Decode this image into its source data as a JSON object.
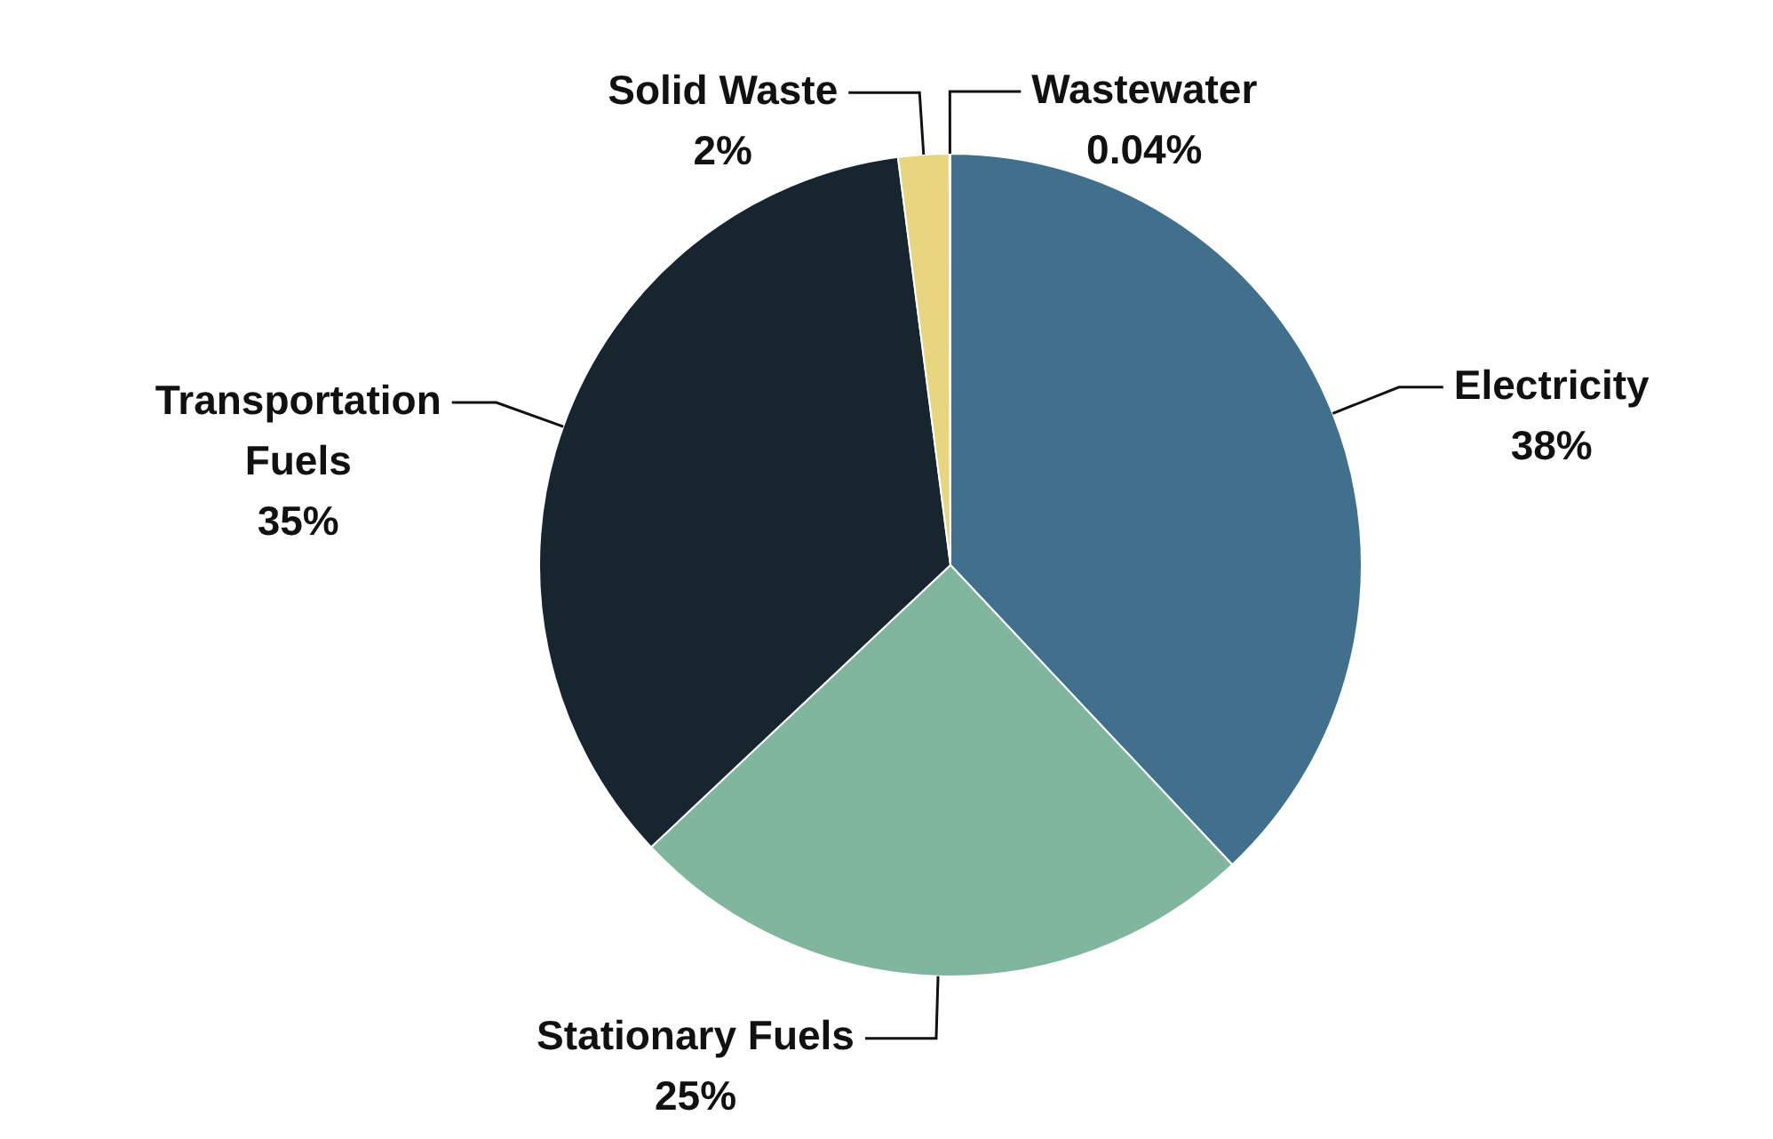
{
  "chart_data": {
    "type": "pie",
    "categories": [
      "Electricity",
      "Stationary Fuels",
      "Transportation Fuels",
      "Solid Waste",
      "Wastewater"
    ],
    "values": [
      38,
      25,
      35,
      2,
      0.04
    ],
    "value_labels": [
      "38%",
      "25%",
      "35%",
      "2%",
      "0.04%"
    ],
    "colors": [
      "#41708c",
      "#80b69e",
      "#17262e",
      "#e8d57f",
      "#9fc3d6"
    ]
  }
}
